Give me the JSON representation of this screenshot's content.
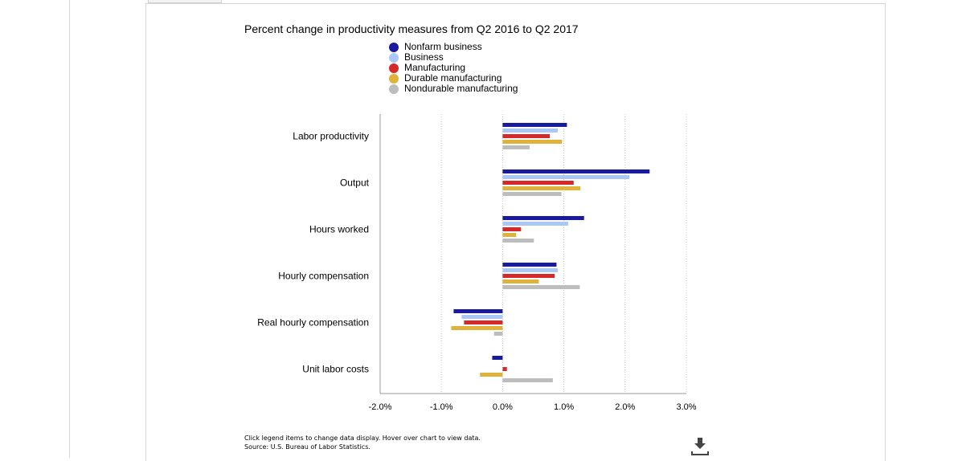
{
  "chart_data": {
    "type": "bar",
    "orientation": "horizontal",
    "title": "Percent change in productivity measures from Q2 2016 to Q2 2017",
    "categories": [
      "Labor productivity",
      "Output",
      "Hours worked",
      "Hourly compensation",
      "Real hourly compensation",
      "Unit labor costs"
    ],
    "series": [
      {
        "name": "Nonfarm business",
        "color": "#1a1a9e",
        "values": [
          1.05,
          2.4,
          1.33,
          0.88,
          -0.8,
          -0.17
        ]
      },
      {
        "name": "Business",
        "color": "#a9c8f5",
        "values": [
          0.9,
          2.07,
          1.07,
          0.9,
          -0.67,
          0.0
        ]
      },
      {
        "name": "Manufacturing",
        "color": "#d62a2a",
        "values": [
          0.77,
          1.16,
          0.3,
          0.85,
          -0.63,
          0.07
        ]
      },
      {
        "name": "Durable manufacturing",
        "color": "#e0b23a",
        "values": [
          0.97,
          1.27,
          0.22,
          0.59,
          -0.84,
          -0.37
        ]
      },
      {
        "name": "Nondurable manufacturing",
        "color": "#bdbdbd",
        "values": [
          0.44,
          0.96,
          0.51,
          1.26,
          -0.14,
          0.82
        ]
      }
    ],
    "xlim": [
      -2.0,
      3.0
    ],
    "xticks": [
      "-2.0%",
      "-1.0%",
      "0.0%",
      "1.0%",
      "2.0%",
      "3.0%"
    ],
    "xtick_values": [
      -2,
      -1,
      0,
      1,
      2,
      3
    ],
    "grid": "vertical dotted",
    "legend_position": "top"
  },
  "footer": {
    "line1": "Click legend items to change data display. Hover over chart to view data.",
    "line2": "Source: U.S. Bureau of Labor Statistics."
  },
  "icons": {
    "download": "download-icon"
  }
}
